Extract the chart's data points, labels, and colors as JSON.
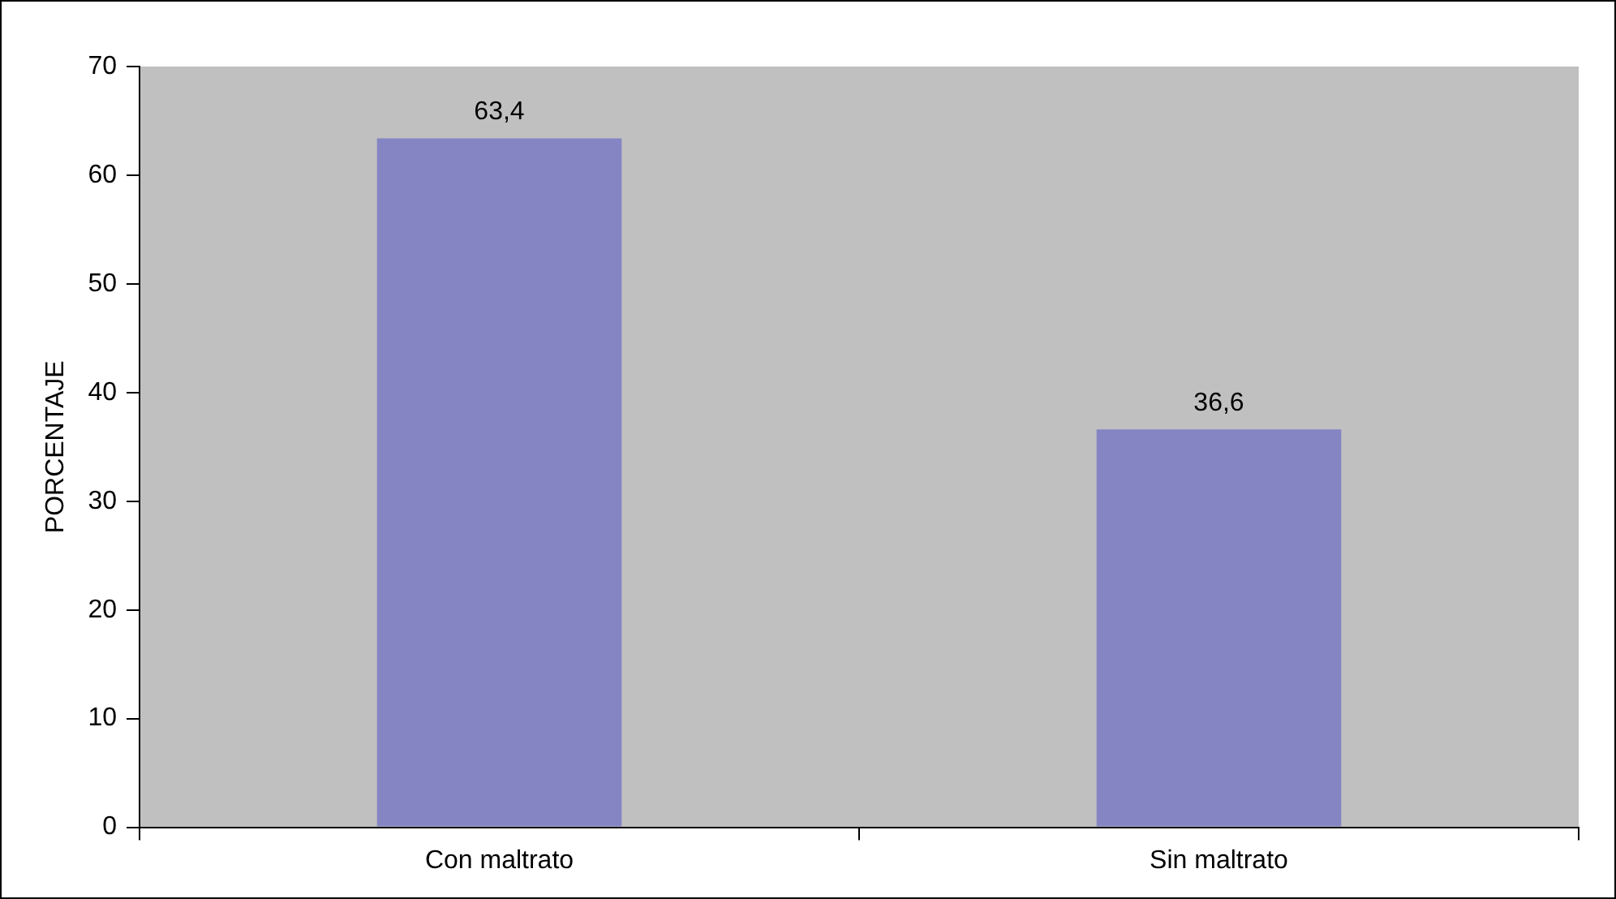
{
  "chart_data": {
    "type": "bar",
    "ylabel": "PORCENTAJE",
    "categories": [
      "Con maltrato",
      "Sin maltrato"
    ],
    "values": [
      63.4,
      36.6
    ],
    "value_labels": [
      "63,4",
      "36,6"
    ],
    "color": "#8585c4",
    "ylim": [
      0,
      70
    ],
    "yticks": [
      0,
      10,
      20,
      30,
      40,
      50,
      60,
      70
    ],
    "grid": false,
    "legend": false
  }
}
